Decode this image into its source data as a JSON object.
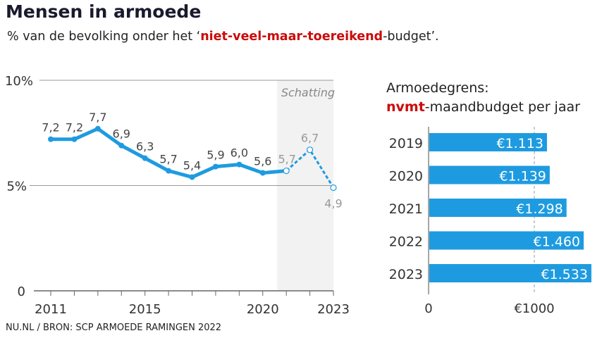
{
  "title": "Mensen in armoede",
  "subtitle": {
    "before": "% van de bevolking onder het ‘",
    "highlight": "niet-veel-maar-toereikend",
    "after": "-budget’."
  },
  "source": "NU.NL / BRON: SCP ARMOEDE RAMINGEN 2022",
  "colors": {
    "line": "#1e9be0",
    "highlight": "#cc0a0a",
    "estimate_band": "#f2f2f2"
  },
  "chart_data": [
    {
      "type": "line",
      "ylim": [
        0,
        10
      ],
      "yticks": [
        {
          "value": 0,
          "label": "0"
        },
        {
          "value": 5,
          "label": "5%"
        },
        {
          "value": 10,
          "label": "10%"
        }
      ],
      "xticks": [
        {
          "value": 2011,
          "label": "2011"
        },
        {
          "value": 2015,
          "label": "2015"
        },
        {
          "value": 2020,
          "label": "2020"
        },
        {
          "value": 2023,
          "label": "2023"
        }
      ],
      "xlim": [
        2011,
        2023
      ],
      "grid": true,
      "annotation": "Schatting",
      "estimate_from": 2021,
      "x": [
        2011,
        2012,
        2013,
        2014,
        2015,
        2016,
        2017,
        2018,
        2019,
        2020,
        2021,
        2022,
        2023
      ],
      "values": [
        7.2,
        7.2,
        7.7,
        6.9,
        6.3,
        5.7,
        5.4,
        5.9,
        6.0,
        5.6,
        5.7,
        6.7,
        4.9
      ],
      "labels": [
        "7,2",
        "7,2",
        "7,7",
        "6,9",
        "6,3",
        "5,7",
        "5,4",
        "5,9",
        "6,0",
        "5,6",
        "5,7",
        "6,7",
        "4,9"
      ]
    },
    {
      "type": "bar",
      "title_line1": "Armoedegrens:",
      "title_highlight": "nvmt",
      "title_line2": "-maandbudget per jaar",
      "categories": [
        "2019",
        "2020",
        "2021",
        "2022",
        "2023"
      ],
      "values": [
        1113,
        1139,
        1298,
        1460,
        1533
      ],
      "labels": [
        "€1.113",
        "€1.139",
        "€1.298",
        "€1.460",
        "€1.533"
      ],
      "xticks": [
        {
          "value": 0,
          "label": "0"
        },
        {
          "value": 1000,
          "label": "€1000"
        }
      ]
    }
  ]
}
